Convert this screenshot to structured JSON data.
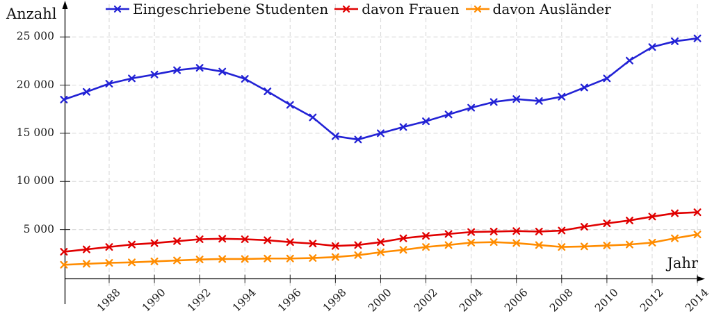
{
  "figure": {
    "background": "#ffffff",
    "axis_color": "#000000",
    "grid_color": "#dcdcdc"
  },
  "chart_data": {
    "type": "line",
    "title": "",
    "xlabel": "Jahr",
    "ylabel": "Anzahl",
    "grid": "dashed",
    "legend_position": "top-center",
    "ylim": [
      0,
      26000
    ],
    "x": [
      1986,
      1987,
      1988,
      1989,
      1990,
      1991,
      1992,
      1993,
      1994,
      1995,
      1996,
      1997,
      1998,
      1999,
      2000,
      2001,
      2002,
      2003,
      2004,
      2005,
      2006,
      2007,
      2008,
      2009,
      2010,
      2011,
      2012,
      2013,
      2014
    ],
    "x_ticks": [
      {
        "value": 1988,
        "label": "1988"
      },
      {
        "value": 1990,
        "label": "1990"
      },
      {
        "value": 1992,
        "label": "1992"
      },
      {
        "value": 1994,
        "label": "1994"
      },
      {
        "value": 1996,
        "label": "1996"
      },
      {
        "value": 1998,
        "label": "1998"
      },
      {
        "value": 2000,
        "label": "2000"
      },
      {
        "value": 2002,
        "label": "2002"
      },
      {
        "value": 2004,
        "label": "2004"
      },
      {
        "value": 2006,
        "label": "2006"
      },
      {
        "value": 2008,
        "label": "2008"
      },
      {
        "value": 2010,
        "label": "2010"
      },
      {
        "value": 2012,
        "label": "2012"
      },
      {
        "value": 2014,
        "label": "2014"
      }
    ],
    "y_ticks": [
      {
        "value": 5000,
        "label": "5 000"
      },
      {
        "value": 10000,
        "label": "10 000"
      },
      {
        "value": 15000,
        "label": "15 000"
      },
      {
        "value": 20000,
        "label": "20 000"
      },
      {
        "value": 25000,
        "label": "25 000"
      }
    ],
    "series": [
      {
        "name": "Eingeschriebene Studenten",
        "color": "#2222d5",
        "marker": "x",
        "values": [
          18500,
          19300,
          20150,
          20700,
          21100,
          21550,
          21800,
          21400,
          20650,
          19350,
          17950,
          16650,
          14700,
          14350,
          15000,
          15650,
          16250,
          16950,
          17650,
          18250,
          18550,
          18350,
          18800,
          19750,
          20700,
          22550,
          23950,
          24550,
          24850
        ]
      },
      {
        "name": "davon Frauen",
        "color": "#e00000",
        "marker": "x",
        "values": [
          2700,
          2950,
          3200,
          3450,
          3600,
          3800,
          4000,
          4050,
          4000,
          3900,
          3700,
          3550,
          3300,
          3400,
          3700,
          4100,
          4350,
          4550,
          4750,
          4800,
          4850,
          4800,
          4900,
          5300,
          5650,
          5950,
          6350,
          6700,
          6800
        ]
      },
      {
        "name": "davon Ausländer",
        "color": "#ff8c00",
        "marker": "x",
        "values": [
          1350,
          1450,
          1550,
          1600,
          1700,
          1800,
          1900,
          1950,
          1950,
          2000,
          2000,
          2050,
          2150,
          2350,
          2650,
          2900,
          3200,
          3400,
          3650,
          3700,
          3600,
          3400,
          3200,
          3250,
          3350,
          3450,
          3650,
          4100,
          4500
        ]
      }
    ]
  }
}
